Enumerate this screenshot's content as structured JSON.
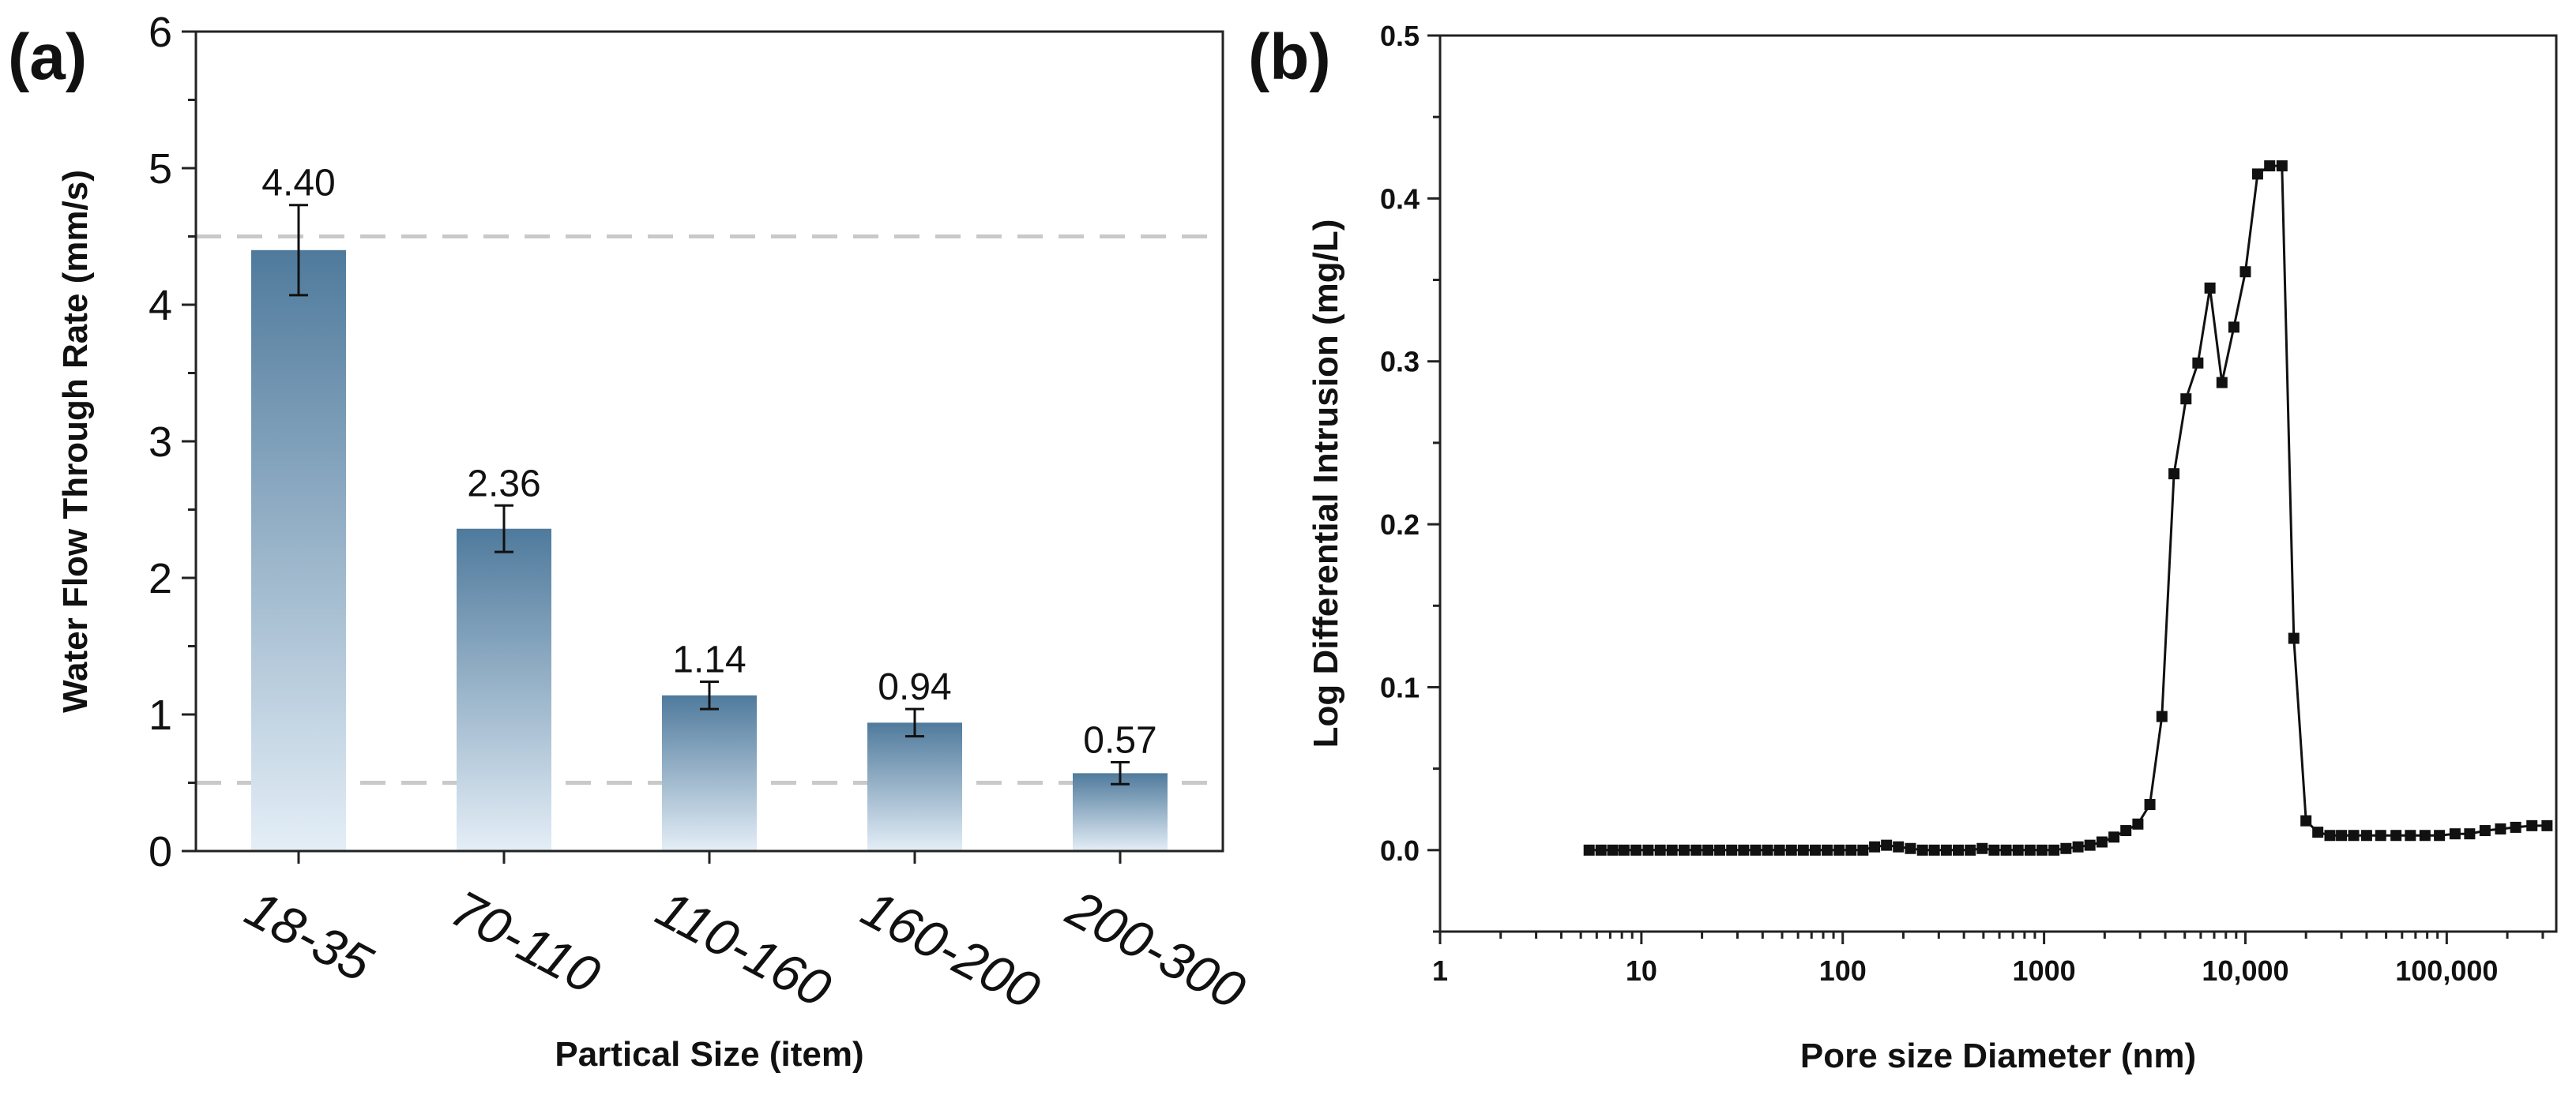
{
  "chart_data": [
    {
      "panel_label": "(a)",
      "type": "bar",
      "xlabel": "Partical Size (item)",
      "ylabel": "Water Flow Through Rate (mm/s)",
      "ylim": [
        0,
        6
      ],
      "yticks": [
        "0",
        "1",
        "2",
        "3",
        "4",
        "5",
        "6"
      ],
      "categories": [
        "18-35",
        "70-110",
        "110-160",
        "160-200",
        "200-300"
      ],
      "values": [
        4.4,
        2.36,
        1.14,
        0.94,
        0.57
      ],
      "value_labels": [
        "4.40",
        "2.36",
        "1.14",
        "0.94",
        "0.57"
      ],
      "errors": [
        0.33,
        0.17,
        0.1,
        0.1,
        0.08
      ],
      "reference_lines": [
        4.5,
        0.5
      ],
      "colors": {
        "bar_top": "#4f7a9c",
        "bar_bottom": "#e4eef7",
        "reference": "#c9c9c9"
      }
    },
    {
      "panel_label": "(b)",
      "type": "line",
      "x_scale": "log",
      "xlabel": "Pore size Diameter (nm)",
      "ylabel": "Log Differential Intrusion (mg/L)",
      "xlim": [
        1,
        350000
      ],
      "ylim": [
        -0.05,
        0.5
      ],
      "xticks": [
        {
          "value": 1,
          "label": "1"
        },
        {
          "value": 10,
          "label": "10"
        },
        {
          "value": 100,
          "label": "100"
        },
        {
          "value": 1000,
          "label": "1000"
        },
        {
          "value": 10000,
          "label": "10,000"
        },
        {
          "value": 100000,
          "label": "100,000"
        }
      ],
      "yticks": [
        {
          "value": 0.0,
          "label": "0.0"
        },
        {
          "value": 0.1,
          "label": "0.1"
        },
        {
          "value": 0.2,
          "label": "0.2"
        },
        {
          "value": 0.3,
          "label": "0.3"
        },
        {
          "value": 0.4,
          "label": "0.4"
        },
        {
          "value": 0.5,
          "label": "0.5"
        }
      ],
      "series": [
        {
          "name": "Log Differential Intrusion",
          "marker": "square",
          "x": [
            5.5,
            6.3,
            7.2,
            8.2,
            9.4,
            10.8,
            12.4,
            14.2,
            16.3,
            18.7,
            21.4,
            24.5,
            28.1,
            32.2,
            36.9,
            42.3,
            48.5,
            55.6,
            63.7,
            73,
            83.7,
            96,
            110,
            126,
            144,
            165,
            189,
            217,
            249,
            285,
            327,
            375,
            430,
            493,
            565,
            648,
            743,
            852,
            977,
            1120,
            1285,
            1475,
            1690,
            1940,
            2225,
            2550,
            2925,
            3355,
            3850,
            4420,
            5070,
            5810,
            6670,
            7650,
            8770,
            10000,
            11500,
            13200,
            15200,
            17400,
            20000,
            22900,
            26300,
            30000,
            34500,
            40000,
            47000,
            56000,
            66000,
            78000,
            92000,
            110000,
            130000,
            155000,
            185000,
            220000,
            265000,
            315000
          ],
          "y": [
            0.0,
            0.0,
            0.0,
            0.0,
            0.0,
            0.0,
            0.0,
            0.0,
            0.0,
            0.0,
            0.0,
            0.0,
            0.0,
            0.0,
            0.0,
            0.0,
            0.0,
            0.0,
            0.0,
            0.0,
            0.0,
            0.0,
            0.0,
            0.0,
            0.002,
            0.003,
            0.002,
            0.001,
            0.0,
            0.0,
            0.0,
            0.0,
            0.0,
            0.001,
            0.0,
            0.0,
            0.0,
            0.0,
            0.0,
            0.0,
            0.001,
            0.002,
            0.003,
            0.005,
            0.008,
            0.012,
            0.016,
            0.028,
            0.082,
            0.231,
            0.277,
            0.299,
            0.345,
            0.287,
            0.321,
            0.355,
            0.415,
            0.42,
            0.42,
            0.13,
            0.018,
            0.011,
            0.009,
            0.009,
            0.009,
            0.009,
            0.009,
            0.009,
            0.009,
            0.009,
            0.009,
            0.01,
            0.01,
            0.012,
            0.013,
            0.014,
            0.015,
            0.015
          ]
        }
      ]
    }
  ]
}
